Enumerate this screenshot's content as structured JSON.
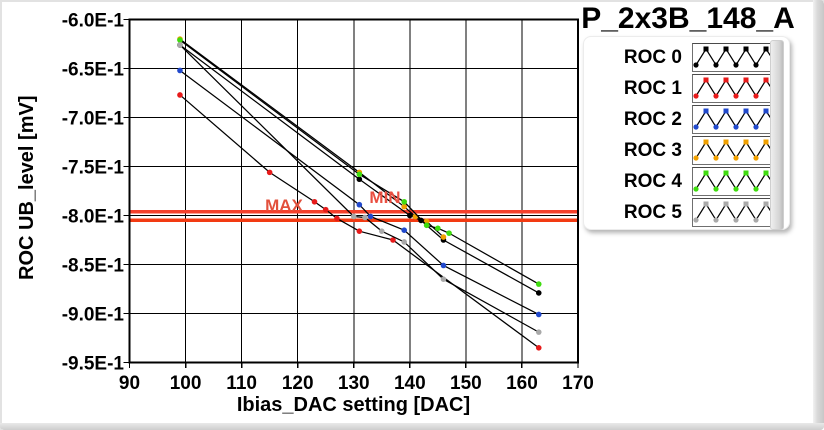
{
  "window": {
    "title": "P_2x3B_148_A"
  },
  "chart": {
    "y_axis_label": "ROC UB_level [mV]",
    "x_axis_label": "Ibias_DAC setting [DAC]",
    "max_label": "MAX",
    "min_label": "MIN",
    "max_label_color": "#e2503c",
    "min_label_color": "#ea4f41"
  },
  "legend": {
    "items": [
      {
        "label": "ROC 0",
        "color": "#000000"
      },
      {
        "label": "ROC 1",
        "color": "#e71a1a"
      },
      {
        "label": "ROC 2",
        "color": "#2149cc"
      },
      {
        "label": "ROC 3",
        "color": "#f0a000"
      },
      {
        "label": "ROC 4",
        "color": "#3fdc0f"
      },
      {
        "label": "ROC 5",
        "color": "#a9a9a9"
      }
    ]
  },
  "chart_data": {
    "type": "line",
    "title": "P_2x3B_148_A",
    "xlabel": "Ibias_DAC setting [DAC]",
    "ylabel": "ROC UB_level [mV]",
    "xlim": [
      90,
      170
    ],
    "ylim": [
      -0.95,
      -0.6
    ],
    "grid": true,
    "x_ticks": [
      90,
      100,
      110,
      120,
      130,
      140,
      150,
      160,
      170
    ],
    "x_gridlines": [
      100,
      110,
      120,
      130,
      140,
      150,
      160
    ],
    "y_ticks": [
      -0.6,
      -0.65,
      -0.7,
      -0.75,
      -0.8,
      -0.85,
      -0.9,
      -0.95
    ],
    "y_tick_labels": [
      "-6.0E-1",
      "-6.5E-1",
      "-7.0E-1",
      "-7.5E-1",
      "-8.0E-1",
      "-8.5E-1",
      "-9.0E-1",
      "-9.5E-1"
    ],
    "y_gridlines": [
      -0.65,
      -0.7,
      -0.75,
      -0.8,
      -0.85,
      -0.9
    ],
    "line_color": "#000000",
    "legend_position": "top-right",
    "limit_lines": {
      "max": {
        "label": "MAX",
        "value": -0.796,
        "color": "#f5402b"
      },
      "min": {
        "label": "MIN",
        "value": -0.805,
        "color": "#f23a12"
      }
    },
    "series": [
      {
        "name": "ROC 0",
        "marker_color": "#000000",
        "points": [
          [
            99,
            -0.626
          ],
          [
            131,
            -0.763
          ],
          [
            140,
            -0.8
          ],
          [
            142,
            -0.805
          ],
          [
            146,
            -0.825
          ],
          [
            163,
            -0.879
          ]
        ]
      },
      {
        "name": "ROC 1",
        "marker_color": "#e71a1a",
        "points": [
          [
            99,
            -0.677
          ],
          [
            115,
            -0.756
          ],
          [
            123,
            -0.786
          ],
          [
            125,
            -0.794
          ],
          [
            127,
            -0.803
          ],
          [
            131,
            -0.816
          ],
          [
            137,
            -0.825
          ],
          [
            163,
            -0.935
          ]
        ]
      },
      {
        "name": "ROC 2",
        "marker_color": "#2149cc",
        "points": [
          [
            99,
            -0.652
          ],
          [
            131,
            -0.789
          ],
          [
            133,
            -0.801
          ],
          [
            139,
            -0.815
          ],
          [
            146,
            -0.851
          ],
          [
            163,
            -0.901
          ]
        ]
      },
      {
        "name": "ROC 3",
        "marker_color": "#f0a000",
        "points": [
          [
            99,
            -0.62
          ],
          [
            131,
            -0.756
          ],
          [
            139,
            -0.791
          ],
          [
            141,
            -0.801
          ],
          [
            143,
            -0.806
          ],
          [
            146,
            -0.822
          ]
        ]
      },
      {
        "name": "ROC 4",
        "marker_color": "#3fdc0f",
        "points": [
          [
            99,
            -0.621
          ],
          [
            131,
            -0.758
          ],
          [
            139,
            -0.786
          ],
          [
            143,
            -0.81
          ],
          [
            145,
            -0.813
          ],
          [
            147,
            -0.818
          ],
          [
            163,
            -0.87
          ]
        ]
      },
      {
        "name": "ROC 5",
        "marker_color": "#a9a9a9",
        "points": [
          [
            99,
            -0.626
          ],
          [
            130,
            -0.801
          ],
          [
            132,
            -0.802
          ],
          [
            135,
            -0.816
          ],
          [
            139,
            -0.827
          ],
          [
            146,
            -0.865
          ],
          [
            163,
            -0.919
          ]
        ]
      }
    ]
  }
}
